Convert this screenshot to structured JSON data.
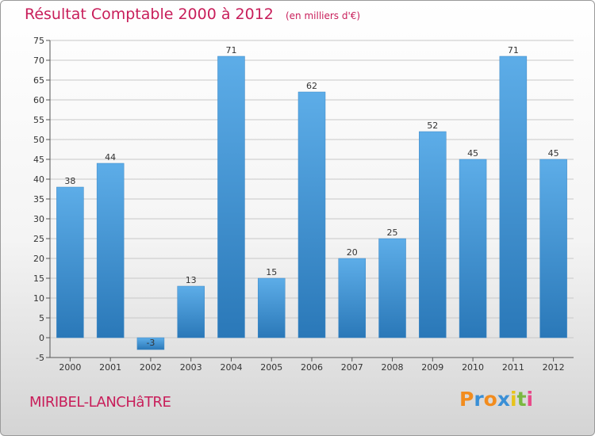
{
  "header": {
    "title": "Résultat Comptable 2000 à 2012",
    "unit": "(en milliers d'€)"
  },
  "footer": {
    "town": "MIRIBEL-LANCHâTRE",
    "logo": "Proxiti",
    "logo_colors": [
      "#f28c1e",
      "#3a8fd6",
      "#f28c1e",
      "#3a8fd6",
      "#e8c31a",
      "#7ab840",
      "#e84a8a"
    ]
  },
  "colors": {
    "bar_top": "#5dade8",
    "bar_bottom": "#2a78b8",
    "title": "#c81e5a",
    "grid": "#c8c8c8"
  },
  "chart_data": {
    "type": "bar",
    "title": "Résultat Comptable 2000 à 2012",
    "subtitle": "(en milliers d'€)",
    "xlabel": "",
    "ylabel": "",
    "categories": [
      "2000",
      "2001",
      "2002",
      "2003",
      "2004",
      "2005",
      "2006",
      "2007",
      "2008",
      "2009",
      "2010",
      "2011",
      "2012"
    ],
    "values": [
      38,
      44,
      -3,
      13,
      71,
      15,
      62,
      20,
      25,
      52,
      45,
      71,
      45
    ],
    "ylim": [
      -5,
      75
    ],
    "yticks": [
      -5,
      0,
      5,
      10,
      15,
      20,
      25,
      30,
      35,
      40,
      45,
      50,
      55,
      60,
      65,
      70,
      75
    ],
    "grid": true,
    "legend": "none"
  }
}
